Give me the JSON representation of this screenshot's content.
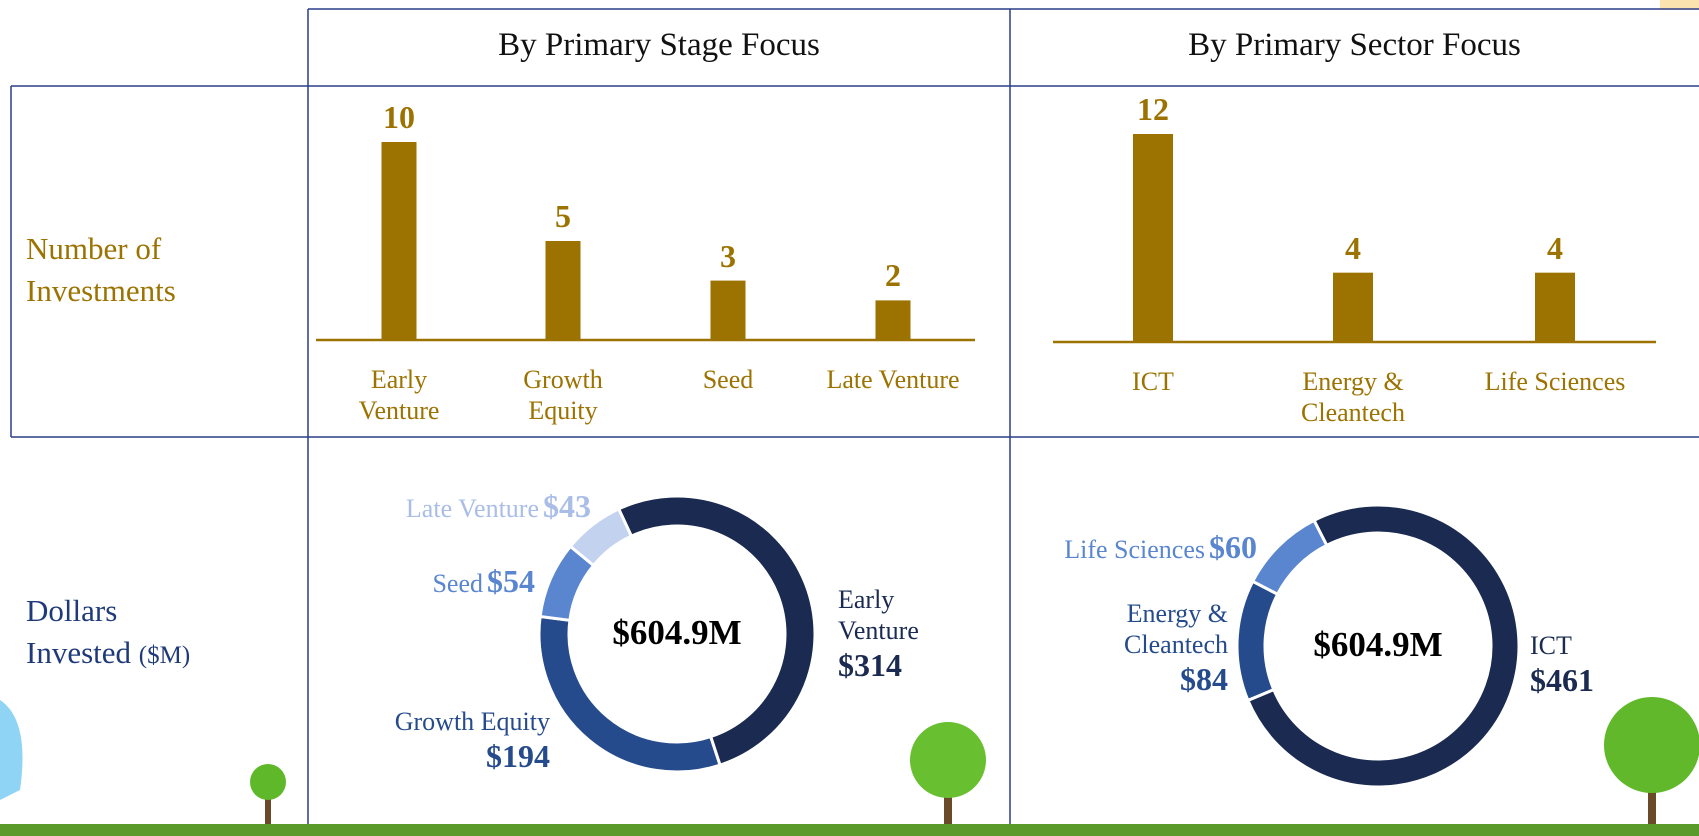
{
  "columns": [
    "By Primary Stage Focus",
    "By Primary Sector Focus"
  ],
  "rows": [
    {
      "label": "Number of Investments"
    },
    {
      "label": "Dollars Invested",
      "unit": "($M)"
    }
  ],
  "chart_data": [
    {
      "type": "bar",
      "categories": [
        "Early\nVenture",
        "Growth\nEquity",
        "Seed",
        "Late Venture"
      ],
      "values": [
        10,
        5,
        3,
        2
      ],
      "color": "#9c7200"
    },
    {
      "type": "bar",
      "categories": [
        "ICT",
        "Energy &\nCleantech",
        "Life Sciences"
      ],
      "values": [
        12,
        4,
        4
      ],
      "color": "#9c7200"
    },
    {
      "type": "donut",
      "center_label": "$604.9M",
      "categories": [
        "Early\nVenture",
        "Growth Equity",
        "Seed",
        "Late Venture"
      ],
      "values": [
        314,
        194,
        54,
        43
      ],
      "value_labels": [
        "$314",
        "$194",
        "$54",
        "$43"
      ],
      "colors": [
        "#1a2a50",
        "#264b8c",
        "#5a86d0",
        "#c3d2ee"
      ],
      "label_colors": [
        "#1a2a50",
        "#264b8c",
        "#5a86d0",
        "#a9bde6"
      ]
    },
    {
      "type": "donut",
      "center_label": "$604.9M",
      "categories": [
        "ICT",
        "Energy &\nCleantech",
        "Life Sciences"
      ],
      "values": [
        461,
        84,
        60
      ],
      "value_labels": [
        "$461",
        "$84",
        "$60"
      ],
      "colors": [
        "#1a2a50",
        "#264b8c",
        "#5a86d0"
      ],
      "label_colors": [
        "#1a2a50",
        "#264b8c",
        "#5a86d0"
      ]
    }
  ]
}
